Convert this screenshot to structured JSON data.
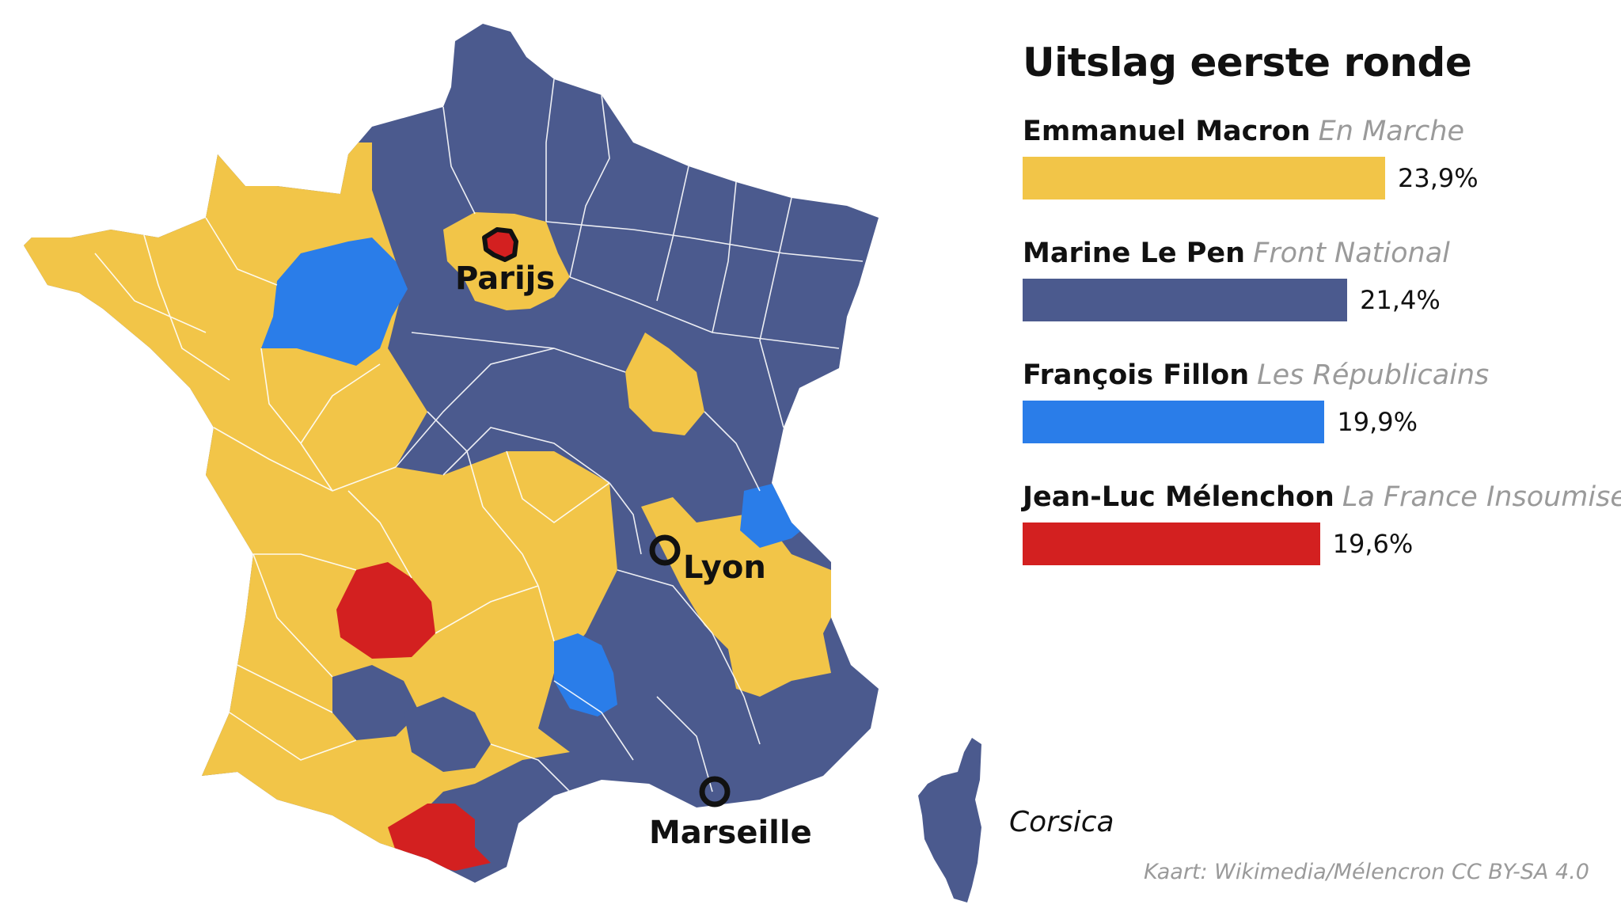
{
  "title": "Uitslag eerste ronde",
  "colors": {
    "macron": "#f2c548",
    "lepen": "#4b5a8e",
    "fillon": "#2a7de9",
    "melenchon": "#d32020",
    "border": "#ffffff"
  },
  "candidates": [
    {
      "name": "Emmanuel Macron",
      "party": "En Marche",
      "pct_label": "23,9%",
      "value": 23.9,
      "color": "#f2c548"
    },
    {
      "name": "Marine Le Pen",
      "party": "Front National",
      "pct_label": "21,4%",
      "value": 21.4,
      "color": "#4b5a8e"
    },
    {
      "name": "François Fillon",
      "party": "Les Républicains",
      "pct_label": "19,9%",
      "value": 19.9,
      "color": "#2a7de9"
    },
    {
      "name": "Jean-Luc Mélenchon",
      "party": "La France Insoumise",
      "pct_label": "19,6%",
      "value": 19.6,
      "color": "#d32020"
    }
  ],
  "map": {
    "cities": {
      "paris": "Parijs",
      "lyon": "Lyon",
      "marseille": "Marseille"
    },
    "corsica_label": "Corsica"
  },
  "credit": "Kaart: Wikimedia/Mélencron CC BY-SA 4.0"
}
